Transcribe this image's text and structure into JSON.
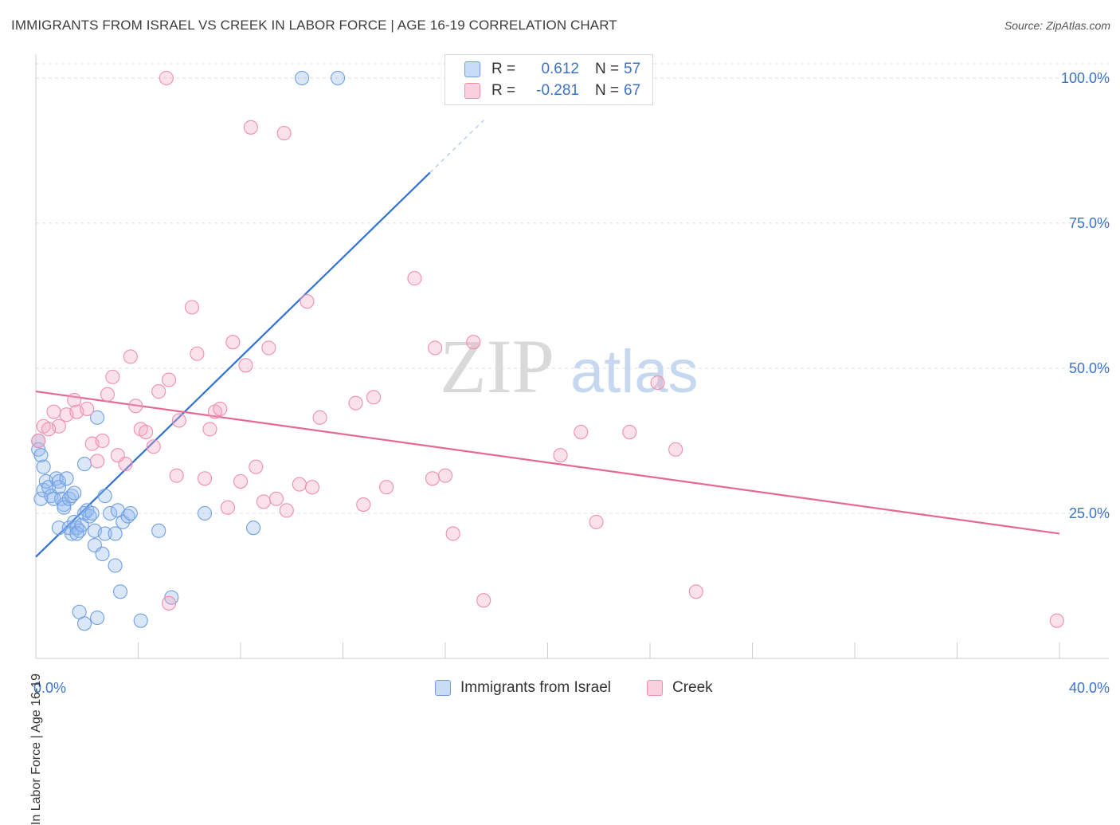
{
  "title": "IMMIGRANTS FROM ISRAEL VS CREEK IN LABOR FORCE | AGE 16-19 CORRELATION CHART",
  "source": "Source: ZipAtlas.com",
  "watermark": {
    "zip": "ZIP",
    "atlas": "atlas"
  },
  "legend": {
    "r_label": "R =",
    "n_label": "N =",
    "series": [
      {
        "name": "Immigrants from Israel",
        "r": "0.612",
        "n": "57",
        "color": "#6fa0e3"
      },
      {
        "name": "Creek",
        "r": "-0.281",
        "n": "67",
        "color": "#ef8fae"
      }
    ]
  },
  "chart_data": {
    "type": "scatter",
    "title": "IMMIGRANTS FROM ISRAEL VS CREEK IN LABOR FORCE | AGE 16-19 CORRELATION CHART",
    "xlabel": "",
    "ylabel": "In Labor Force | Age 16-19",
    "xlim": [
      0,
      40
    ],
    "ylim": [
      0,
      100
    ],
    "x_tick_labels": [
      "0.0%",
      "40.0%"
    ],
    "y_tick_labels": [
      "100.0%",
      "75.0%",
      "50.0%",
      "25.0%"
    ],
    "y_ticks": [
      100,
      75,
      50,
      25
    ],
    "grid": true,
    "legend_position": "top-center",
    "series": [
      {
        "name": "Immigrants from Israel",
        "color": "#6fa0e3",
        "trend": {
          "x0": 0,
          "y0": 17.5,
          "x1": 15.4,
          "y1": 83.7,
          "dash_to_x": 17.5
        },
        "points": [
          [
            0.1,
            37.5
          ],
          [
            0.1,
            36
          ],
          [
            0.2,
            35
          ],
          [
            0.3,
            33
          ],
          [
            0.2,
            27.5
          ],
          [
            0.3,
            29
          ],
          [
            0.4,
            30.5
          ],
          [
            0.5,
            29.5
          ],
          [
            0.6,
            28
          ],
          [
            0.7,
            27.5
          ],
          [
            0.8,
            31
          ],
          [
            0.9,
            30.5
          ],
          [
            0.9,
            29.5
          ],
          [
            1.0,
            27.5
          ],
          [
            1.1,
            26.5
          ],
          [
            1.1,
            26
          ],
          [
            1.2,
            31
          ],
          [
            1.3,
            27.5
          ],
          [
            1.4,
            28
          ],
          [
            1.5,
            28.5
          ],
          [
            0.9,
            22.5
          ],
          [
            1.3,
            22.5
          ],
          [
            1.4,
            21.5
          ],
          [
            1.5,
            23.5
          ],
          [
            1.6,
            22.5
          ],
          [
            1.7,
            22
          ],
          [
            1.6,
            21.5
          ],
          [
            1.8,
            23
          ],
          [
            1.9,
            25
          ],
          [
            2.0,
            25.5
          ],
          [
            2.1,
            24.5
          ],
          [
            2.2,
            25
          ],
          [
            2.3,
            22
          ],
          [
            2.3,
            19.5
          ],
          [
            2.4,
            41.5
          ],
          [
            1.9,
            33.5
          ],
          [
            2.6,
            18
          ],
          [
            2.7,
            21.5
          ],
          [
            2.7,
            28
          ],
          [
            2.9,
            25
          ],
          [
            3.1,
            21.5
          ],
          [
            3.1,
            16
          ],
          [
            3.2,
            25.5
          ],
          [
            3.4,
            23.5
          ],
          [
            3.6,
            24.5
          ],
          [
            3.7,
            25
          ],
          [
            3.3,
            11.5
          ],
          [
            4.8,
            22
          ],
          [
            5.3,
            10.5
          ],
          [
            6.6,
            25
          ],
          [
            8.5,
            22.5
          ],
          [
            1.7,
            8
          ],
          [
            1.9,
            6
          ],
          [
            2.4,
            7
          ],
          [
            4.1,
            6.5
          ],
          [
            10.4,
            100
          ],
          [
            11.8,
            100
          ]
        ]
      },
      {
        "name": "Creek",
        "color": "#ef8fae",
        "trend": {
          "x0": 0,
          "y0": 46,
          "x1": 40,
          "y1": 21.5
        },
        "points": [
          [
            0.1,
            37.5
          ],
          [
            0.3,
            40
          ],
          [
            0.7,
            42.5
          ],
          [
            0.9,
            40
          ],
          [
            1.2,
            42
          ],
          [
            1.5,
            44.5
          ],
          [
            1.6,
            42.5
          ],
          [
            2.0,
            43
          ],
          [
            2.2,
            37
          ],
          [
            2.4,
            34
          ],
          [
            2.6,
            37.5
          ],
          [
            2.8,
            45.5
          ],
          [
            3.0,
            48.5
          ],
          [
            3.2,
            35
          ],
          [
            3.5,
            33.5
          ],
          [
            3.7,
            52
          ],
          [
            3.9,
            43.5
          ],
          [
            4.1,
            39.5
          ],
          [
            4.3,
            39
          ],
          [
            4.6,
            36.5
          ],
          [
            4.8,
            46
          ],
          [
            5.2,
            48
          ],
          [
            5.6,
            41
          ],
          [
            5.5,
            31.5
          ],
          [
            6.1,
            60.5
          ],
          [
            6.3,
            52.5
          ],
          [
            6.6,
            31
          ],
          [
            6.8,
            39.5
          ],
          [
            7.0,
            42.5
          ],
          [
            7.2,
            43
          ],
          [
            7.5,
            26
          ],
          [
            7.7,
            54.5
          ],
          [
            8.0,
            30.5
          ],
          [
            8.2,
            50.5
          ],
          [
            8.6,
            33
          ],
          [
            8.9,
            27
          ],
          [
            9.1,
            53.5
          ],
          [
            9.4,
            27.5
          ],
          [
            9.8,
            25.5
          ],
          [
            10.3,
            30
          ],
          [
            10.6,
            61.5
          ],
          [
            10.8,
            29.5
          ],
          [
            11.1,
            41.5
          ],
          [
            12.5,
            44
          ],
          [
            12.8,
            26.5
          ],
          [
            13.2,
            45
          ],
          [
            13.7,
            29.5
          ],
          [
            14.8,
            65.5
          ],
          [
            15.5,
            31
          ],
          [
            15.6,
            53.5
          ],
          [
            16.0,
            31.5
          ],
          [
            16.3,
            21.5
          ],
          [
            17.1,
            54.5
          ],
          [
            17.5,
            10
          ],
          [
            20.5,
            35
          ],
          [
            21.3,
            39
          ],
          [
            21.9,
            23.5
          ],
          [
            23.2,
            39
          ],
          [
            24.3,
            47.5
          ],
          [
            25.0,
            36
          ],
          [
            25.8,
            11.5
          ],
          [
            5.2,
            9.5
          ],
          [
            5.1,
            100
          ],
          [
            8.4,
            91.5
          ],
          [
            9.7,
            90.5
          ],
          [
            39.9,
            6.5
          ],
          [
            0.5,
            39.5
          ]
        ]
      }
    ]
  }
}
